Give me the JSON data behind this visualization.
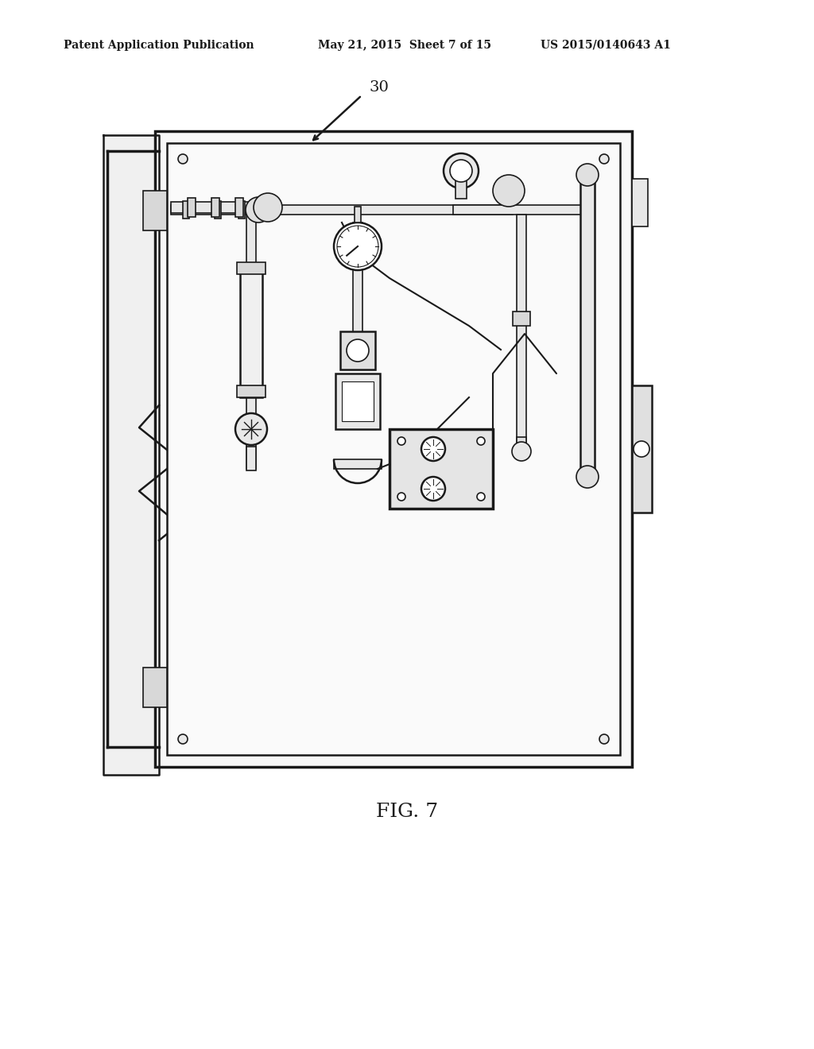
{
  "header_left": "Patent Application Publication",
  "header_mid": "May 21, 2015  Sheet 7 of 15",
  "header_right": "US 2015/0140643 A1",
  "fig_label": "FIG. 7",
  "ref_number": "30",
  "bg_color": "#ffffff",
  "line_color": "#1a1a1a",
  "light_gray": "#cccccc",
  "mid_gray": "#888888"
}
